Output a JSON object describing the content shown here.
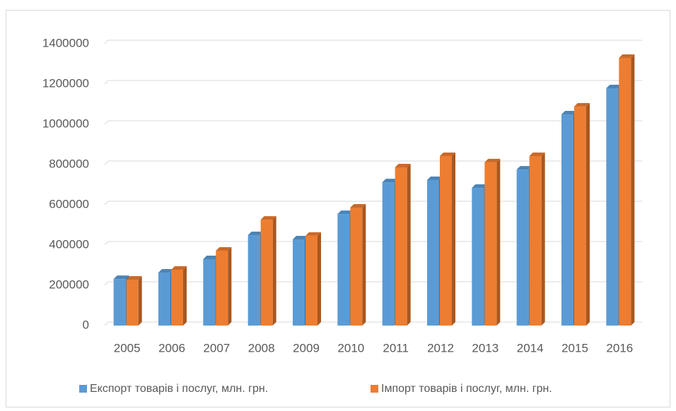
{
  "chart_data": {
    "type": "bar3d",
    "categories": [
      "2005",
      "2006",
      "2007",
      "2008",
      "2009",
      "2010",
      "2011",
      "2012",
      "2013",
      "2014",
      "2015",
      "2016"
    ],
    "series": [
      {
        "name": "Експорт товарів і послуг, млн. грн.",
        "color": "#5b9bd5",
        "values": [
          231000,
          263000,
          330000,
          449000,
          428000,
          554000,
          712000,
          723000,
          684000,
          775000,
          1049000,
          1179000
        ]
      },
      {
        "name": "Імпорт товарів і послуг, млн. грн.",
        "color": "#ed7d31",
        "values": [
          228000,
          277000,
          372000,
          526000,
          446000,
          586000,
          786000,
          842000,
          811000,
          842000,
          1088000,
          1330000
        ]
      }
    ],
    "ylim": [
      0,
      1400000
    ],
    "yticks": [
      0,
      200000,
      400000,
      600000,
      800000,
      1000000,
      1200000,
      1400000
    ],
    "grid": true,
    "legend": "bottom"
  }
}
